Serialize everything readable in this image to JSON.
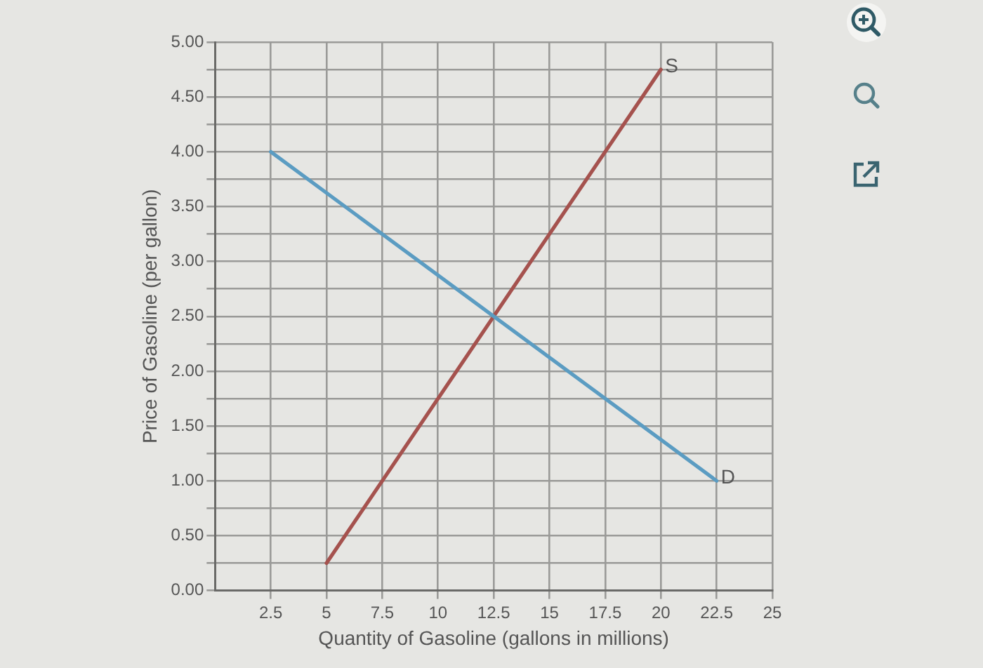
{
  "chart_data": {
    "type": "line",
    "xlabel": "Quantity of Gasoline (gallons in millions)",
    "ylabel": "Price of Gasoline (per gallon)",
    "xlim": [
      0,
      25
    ],
    "xticks": [
      2.5,
      5,
      7.5,
      10,
      12.5,
      15,
      17.5,
      20,
      22.5,
      25
    ],
    "ylim": [
      0,
      5
    ],
    "yticks": [
      {
        "value": 0,
        "label": "0.00"
      },
      {
        "value": 0.25,
        "label": null
      },
      {
        "value": 0.5,
        "label": "0.50"
      },
      {
        "value": 0.75,
        "label": null
      },
      {
        "value": 1,
        "label": "1.00"
      },
      {
        "value": 1.25,
        "label": null
      },
      {
        "value": 1.5,
        "label": "1.50"
      },
      {
        "value": 1.75,
        "label": null
      },
      {
        "value": 2,
        "label": "2.00"
      },
      {
        "value": 2.25,
        "label": null
      },
      {
        "value": 2.5,
        "label": "2.50"
      },
      {
        "value": 2.75,
        "label": null
      },
      {
        "value": 3,
        "label": "3.00"
      },
      {
        "value": 3.25,
        "label": null
      },
      {
        "value": 3.5,
        "label": "3.50"
      },
      {
        "value": 3.75,
        "label": null
      },
      {
        "value": 4,
        "label": "4.00"
      },
      {
        "value": 4.25,
        "label": null
      },
      {
        "value": 4.5,
        "label": "4.50"
      },
      {
        "value": 4.75,
        "label": null
      },
      {
        "value": 5,
        "label": "5.00"
      }
    ],
    "grid": true,
    "marker": "none",
    "line_style": "solid",
    "series": [
      {
        "name": "D",
        "color": "#5b9cc2",
        "x": [
          2.5,
          22.5
        ],
        "values": [
          4,
          1
        ]
      },
      {
        "name": "S",
        "color": "#a5524e",
        "x": [
          5,
          20
        ],
        "values": [
          0.25,
          4.75
        ]
      }
    ]
  }
}
